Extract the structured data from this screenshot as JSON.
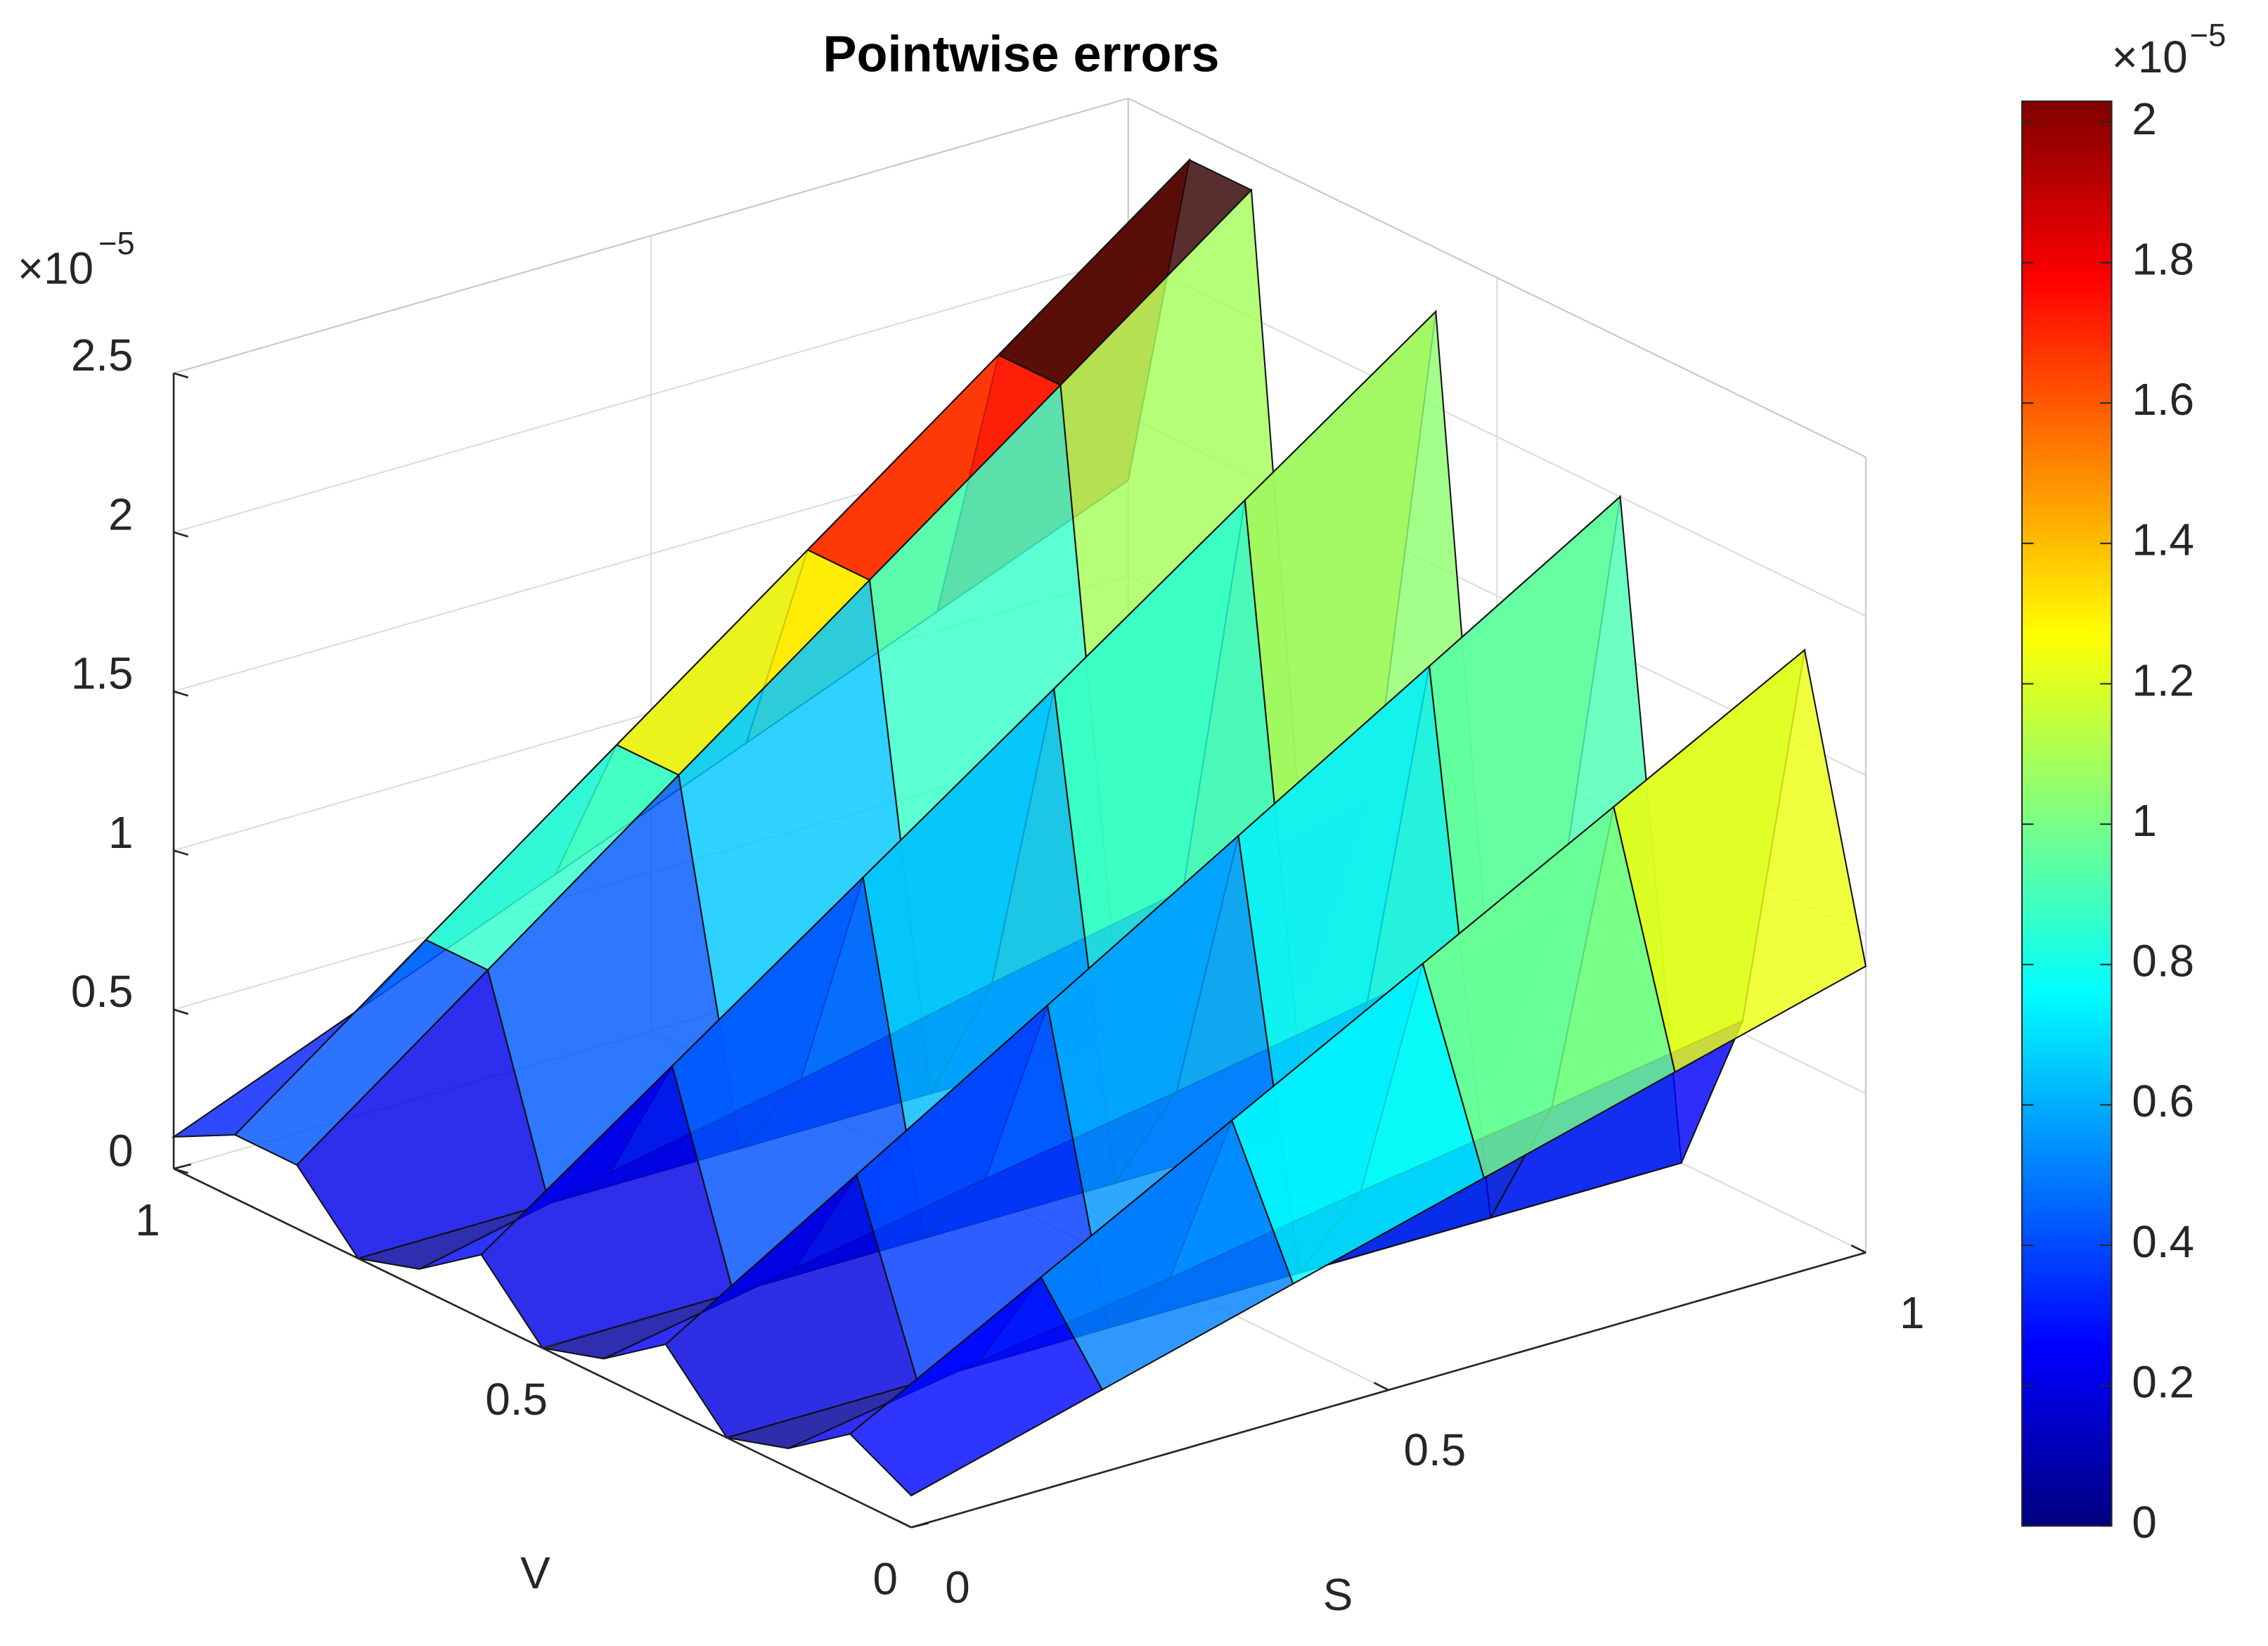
{
  "chart_data": {
    "type": "surface3d",
    "title": "Pointwise errors",
    "xlabel": "S",
    "ylabel": "V",
    "xlim": [
      0,
      1
    ],
    "xticks": [
      0,
      0.5,
      1
    ],
    "ylim": [
      0,
      1
    ],
    "yticks": [
      0,
      0.5,
      1
    ],
    "zlim": [
      0,
      2.5
    ],
    "zticks": [
      0,
      0.5,
      1,
      1.5,
      2,
      2.5
    ],
    "z_exponent": {
      "base": "×10",
      "power": "−5"
    },
    "grid": true,
    "s": [
      0,
      0.2,
      0.4,
      0.6,
      0.8,
      1
    ],
    "v": [
      0,
      0.083,
      0.167,
      0.25,
      0.333,
      0.417,
      0.5,
      0.583,
      0.667,
      0.75,
      0.833,
      0.917,
      1
    ],
    "z": [
      [
        0.1,
        0.26,
        0.42,
        0.58,
        0.74,
        0.9
      ],
      [
        0.2,
        0.52,
        0.84,
        1.16,
        1.48,
        1.8
      ],
      [
        0.06,
        0.16,
        0.25,
        0.35,
        0.44,
        0.54
      ],
      [
        0,
        0,
        0,
        0,
        0,
        0
      ],
      [
        0.2,
        0.56,
        0.92,
        1.28,
        1.64,
        2.0
      ],
      [
        0.06,
        0.17,
        0.28,
        0.38,
        0.49,
        0.6
      ],
      [
        0,
        0,
        0,
        0,
        0,
        0
      ],
      [
        0.2,
        0.62,
        1.04,
        1.46,
        1.88,
        2.3
      ],
      [
        0.06,
        0.19,
        0.31,
        0.44,
        0.56,
        0.69
      ],
      [
        0,
        0,
        0,
        0,
        0,
        0
      ],
      [
        0.2,
        0.64,
        1.08,
        1.52,
        1.96,
        2.4
      ],
      [
        0.2,
        0.64,
        1.08,
        1.52,
        1.96,
        2.4
      ],
      [
        0.1,
        0.34,
        0.58,
        0.82,
        1.06,
        1.3
      ]
    ],
    "colormap": "jet",
    "colorbar": {
      "clim": [
        0,
        2.03
      ],
      "ticks": [
        0,
        0.2,
        0.4,
        0.6,
        0.8,
        1,
        1.2,
        1.4,
        1.6,
        1.8,
        2
      ],
      "exponent": {
        "base": "×10",
        "power": "−5"
      }
    }
  }
}
